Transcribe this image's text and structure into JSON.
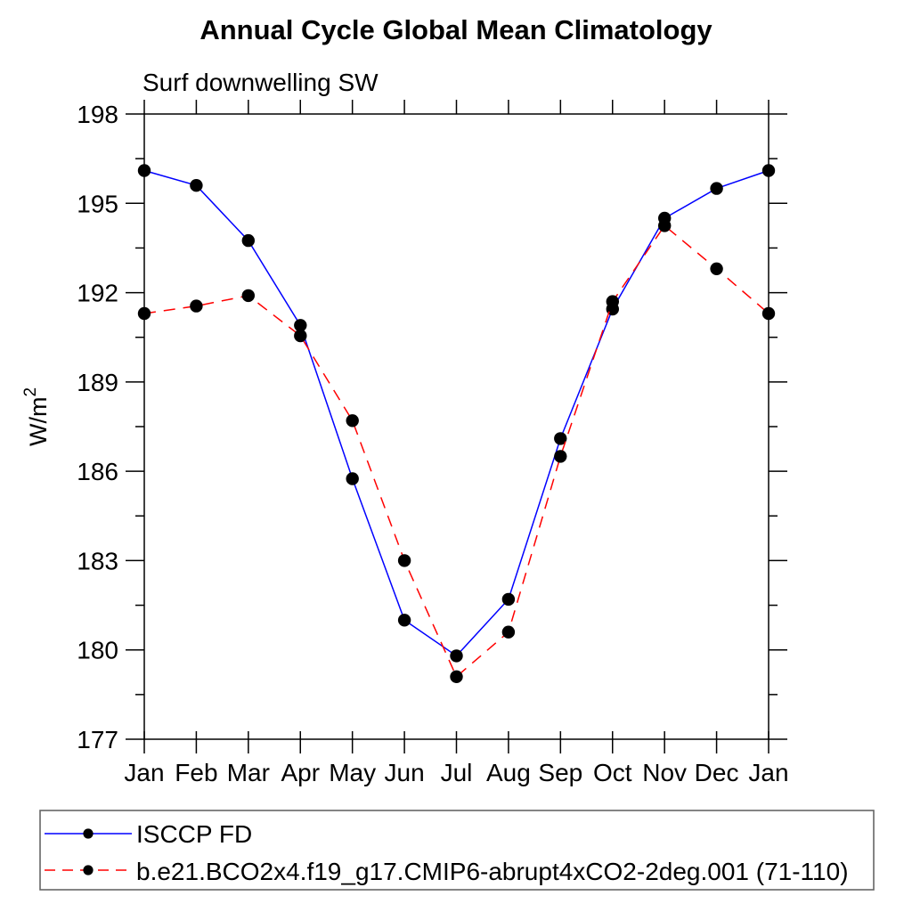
{
  "title": "Annual Cycle Global Mean Climatology",
  "subtitle": "Surf downwelling SW",
  "chart_data": {
    "type": "line",
    "x_categories": [
      "Jan",
      "Feb",
      "Mar",
      "Apr",
      "May",
      "Jun",
      "Jul",
      "Aug",
      "Sep",
      "Oct",
      "Nov",
      "Dec",
      "Jan"
    ],
    "ylabel": "W/m²",
    "ylabel_base": "W/m",
    "ylabel_exponent": "2",
    "ylim": [
      177,
      198
    ],
    "ytick_step": 3,
    "yminor_step": 1.5,
    "ytick_labels": [
      "177",
      "180",
      "183",
      "186",
      "189",
      "192",
      "195",
      "198"
    ],
    "grid": false,
    "legend_position": "bottom",
    "series": [
      {
        "name": "ISCCP FD",
        "color": "#0000ff",
        "line_style": "solid",
        "marker": "filled-circle",
        "marker_color": "#000000",
        "values": [
          196.1,
          195.6,
          193.75,
          190.9,
          185.75,
          181.0,
          179.8,
          181.7,
          187.1,
          191.45,
          194.5,
          195.5,
          196.1
        ]
      },
      {
        "name": "b.e21.BCO2x4.f19_g17.CMIP6-abrupt4xCO2-2deg.001 (71-110)",
        "color": "#ff0000",
        "line_style": "dashed",
        "marker": "filled-circle",
        "marker_color": "#000000",
        "values": [
          191.3,
          191.55,
          191.9,
          190.55,
          187.7,
          183.0,
          179.1,
          180.6,
          186.5,
          191.7,
          194.25,
          192.8,
          191.3
        ]
      }
    ],
    "axis_color": "#000000",
    "legend_border_color": "#666666"
  }
}
